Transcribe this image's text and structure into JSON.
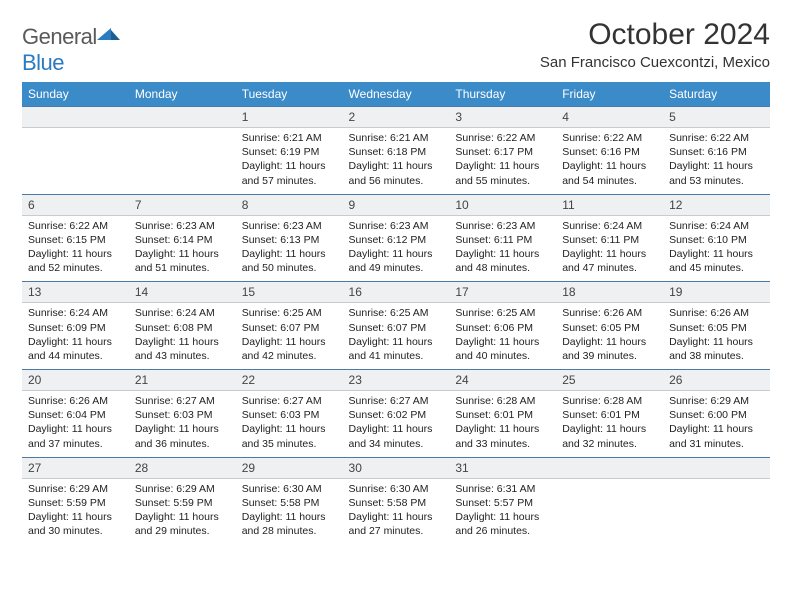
{
  "logo": {
    "text1": "General",
    "text2": "Blue"
  },
  "title": "October 2024",
  "location": "San Francisco Cuexcontzi, Mexico",
  "colors": {
    "header_bg": "#3b8bc9",
    "header_text": "#ffffff",
    "daybar_bg": "#eef0f1",
    "daybar_border_top": "#4a7ba8",
    "text": "#222222"
  },
  "day_names": [
    "Sunday",
    "Monday",
    "Tuesday",
    "Wednesday",
    "Thursday",
    "Friday",
    "Saturday"
  ],
  "weeks": [
    {
      "nums": [
        "",
        "",
        "1",
        "2",
        "3",
        "4",
        "5"
      ],
      "cells": [
        null,
        null,
        {
          "sunrise": "6:21 AM",
          "sunset": "6:19 PM",
          "daylight": "11 hours and 57 minutes."
        },
        {
          "sunrise": "6:21 AM",
          "sunset": "6:18 PM",
          "daylight": "11 hours and 56 minutes."
        },
        {
          "sunrise": "6:22 AM",
          "sunset": "6:17 PM",
          "daylight": "11 hours and 55 minutes."
        },
        {
          "sunrise": "6:22 AM",
          "sunset": "6:16 PM",
          "daylight": "11 hours and 54 minutes."
        },
        {
          "sunrise": "6:22 AM",
          "sunset": "6:16 PM",
          "daylight": "11 hours and 53 minutes."
        }
      ]
    },
    {
      "nums": [
        "6",
        "7",
        "8",
        "9",
        "10",
        "11",
        "12"
      ],
      "cells": [
        {
          "sunrise": "6:22 AM",
          "sunset": "6:15 PM",
          "daylight": "11 hours and 52 minutes."
        },
        {
          "sunrise": "6:23 AM",
          "sunset": "6:14 PM",
          "daylight": "11 hours and 51 minutes."
        },
        {
          "sunrise": "6:23 AM",
          "sunset": "6:13 PM",
          "daylight": "11 hours and 50 minutes."
        },
        {
          "sunrise": "6:23 AM",
          "sunset": "6:12 PM",
          "daylight": "11 hours and 49 minutes."
        },
        {
          "sunrise": "6:23 AM",
          "sunset": "6:11 PM",
          "daylight": "11 hours and 48 minutes."
        },
        {
          "sunrise": "6:24 AM",
          "sunset": "6:11 PM",
          "daylight": "11 hours and 47 minutes."
        },
        {
          "sunrise": "6:24 AM",
          "sunset": "6:10 PM",
          "daylight": "11 hours and 45 minutes."
        }
      ]
    },
    {
      "nums": [
        "13",
        "14",
        "15",
        "16",
        "17",
        "18",
        "19"
      ],
      "cells": [
        {
          "sunrise": "6:24 AM",
          "sunset": "6:09 PM",
          "daylight": "11 hours and 44 minutes."
        },
        {
          "sunrise": "6:24 AM",
          "sunset": "6:08 PM",
          "daylight": "11 hours and 43 minutes."
        },
        {
          "sunrise": "6:25 AM",
          "sunset": "6:07 PM",
          "daylight": "11 hours and 42 minutes."
        },
        {
          "sunrise": "6:25 AM",
          "sunset": "6:07 PM",
          "daylight": "11 hours and 41 minutes."
        },
        {
          "sunrise": "6:25 AM",
          "sunset": "6:06 PM",
          "daylight": "11 hours and 40 minutes."
        },
        {
          "sunrise": "6:26 AM",
          "sunset": "6:05 PM",
          "daylight": "11 hours and 39 minutes."
        },
        {
          "sunrise": "6:26 AM",
          "sunset": "6:05 PM",
          "daylight": "11 hours and 38 minutes."
        }
      ]
    },
    {
      "nums": [
        "20",
        "21",
        "22",
        "23",
        "24",
        "25",
        "26"
      ],
      "cells": [
        {
          "sunrise": "6:26 AM",
          "sunset": "6:04 PM",
          "daylight": "11 hours and 37 minutes."
        },
        {
          "sunrise": "6:27 AM",
          "sunset": "6:03 PM",
          "daylight": "11 hours and 36 minutes."
        },
        {
          "sunrise": "6:27 AM",
          "sunset": "6:03 PM",
          "daylight": "11 hours and 35 minutes."
        },
        {
          "sunrise": "6:27 AM",
          "sunset": "6:02 PM",
          "daylight": "11 hours and 34 minutes."
        },
        {
          "sunrise": "6:28 AM",
          "sunset": "6:01 PM",
          "daylight": "11 hours and 33 minutes."
        },
        {
          "sunrise": "6:28 AM",
          "sunset": "6:01 PM",
          "daylight": "11 hours and 32 minutes."
        },
        {
          "sunrise": "6:29 AM",
          "sunset": "6:00 PM",
          "daylight": "11 hours and 31 minutes."
        }
      ]
    },
    {
      "nums": [
        "27",
        "28",
        "29",
        "30",
        "31",
        "",
        ""
      ],
      "cells": [
        {
          "sunrise": "6:29 AM",
          "sunset": "5:59 PM",
          "daylight": "11 hours and 30 minutes."
        },
        {
          "sunrise": "6:29 AM",
          "sunset": "5:59 PM",
          "daylight": "11 hours and 29 minutes."
        },
        {
          "sunrise": "6:30 AM",
          "sunset": "5:58 PM",
          "daylight": "11 hours and 28 minutes."
        },
        {
          "sunrise": "6:30 AM",
          "sunset": "5:58 PM",
          "daylight": "11 hours and 27 minutes."
        },
        {
          "sunrise": "6:31 AM",
          "sunset": "5:57 PM",
          "daylight": "11 hours and 26 minutes."
        },
        null,
        null
      ]
    }
  ],
  "labels": {
    "sunrise": "Sunrise: ",
    "sunset": "Sunset: ",
    "daylight": "Daylight: "
  }
}
